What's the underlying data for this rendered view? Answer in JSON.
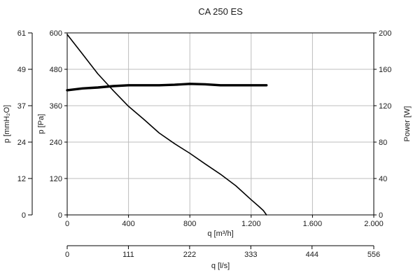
{
  "chart_data": {
    "type": "line",
    "title": "CA 250 ES",
    "x_axis": {
      "label": "q [m³/h]",
      "range": [
        0,
        2000
      ],
      "ticks": [
        0,
        400,
        800,
        1200,
        1600,
        2000
      ],
      "tick_labels": [
        "0",
        "400",
        "800",
        "1.200",
        "1.600",
        "2.000"
      ]
    },
    "x2_axis": {
      "label": "q [l/s]",
      "range": [
        0,
        556
      ],
      "ticks": [
        0,
        111,
        222,
        333,
        444,
        556
      ],
      "tick_labels": [
        "0",
        "111",
        "222",
        "333",
        "444",
        "556"
      ]
    },
    "y_left_pa": {
      "label": "p [Pa]",
      "range": [
        0,
        600
      ],
      "ticks": [
        0,
        120,
        240,
        360,
        480,
        600
      ],
      "tick_labels": [
        "0",
        "120",
        "240",
        "360",
        "480",
        "600"
      ]
    },
    "y_left_mmh2o": {
      "label": "p [mmH₂O]",
      "tick_labels": [
        "0",
        "12",
        "24",
        "37",
        "49",
        "61"
      ]
    },
    "y_right_power": {
      "label": "Power [W]",
      "range": [
        0,
        200
      ],
      "ticks": [
        0,
        40,
        80,
        120,
        160,
        200
      ],
      "tick_labels": [
        "0",
        "40",
        "80",
        "120",
        "160",
        "200"
      ]
    },
    "grid": true,
    "series": [
      {
        "axis": "pressure",
        "x": [
          0,
          100,
          200,
          300,
          400,
          500,
          600,
          700,
          800,
          900,
          1000,
          1100,
          1200,
          1250,
          1280,
          1300
        ],
        "y": [
          595,
          530,
          465,
          410,
          358,
          315,
          270,
          235,
          203,
          168,
          134,
          96,
          50,
          28,
          14,
          0
        ]
      },
      {
        "axis": "power",
        "x": [
          0,
          100,
          200,
          300,
          400,
          500,
          600,
          700,
          800,
          900,
          1000,
          1100,
          1200,
          1300
        ],
        "y": [
          137,
          139,
          140,
          141.5,
          142.5,
          142.5,
          142.5,
          143,
          144,
          143.5,
          142.5,
          142.5,
          142.5,
          142.5
        ]
      }
    ]
  }
}
